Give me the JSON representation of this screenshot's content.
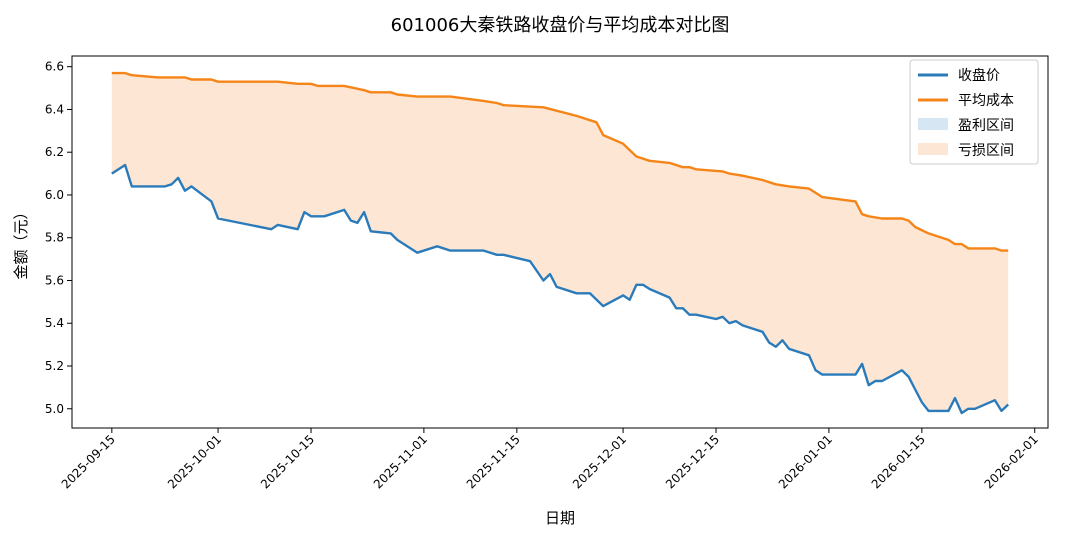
{
  "colors": {
    "close": "#2b7bba",
    "cost": "#f58518",
    "profit_fill": "#d6e6f2",
    "loss_fill": "#fde6d3"
  },
  "chart_data": {
    "type": "line",
    "title": "601006大秦铁路收盘价与平均成本对比图",
    "xlabel": "日期",
    "ylabel": "金额（元）",
    "x_range": [
      "2025-09-09",
      "2026-02-03"
    ],
    "ylim": [
      4.91,
      6.65
    ],
    "y_ticks": [
      "5.0",
      "5.2",
      "5.4",
      "5.6",
      "5.8",
      "6.0",
      "6.2",
      "6.4",
      "6.6"
    ],
    "x_ticks": [
      "2025-09-15",
      "2025-10-01",
      "2025-10-15",
      "2025-11-01",
      "2025-11-15",
      "2025-12-01",
      "2025-12-15",
      "2026-01-01",
      "2026-01-15",
      "2026-02-01"
    ],
    "grid": false,
    "legend_position": "top-right",
    "legend": [
      "收盘价",
      "平均成本",
      "盈利区间",
      "亏损区间"
    ],
    "series": [
      {
        "name": "收盘价",
        "points": [
          [
            "2025-09-15",
            6.1
          ],
          [
            "2025-09-17",
            6.14
          ],
          [
            "2025-09-18",
            6.04
          ],
          [
            "2025-09-19",
            6.04
          ],
          [
            "2025-09-22",
            6.04
          ],
          [
            "2025-09-23",
            6.04
          ],
          [
            "2025-09-24",
            6.05
          ],
          [
            "2025-09-25",
            6.08
          ],
          [
            "2025-09-26",
            6.02
          ],
          [
            "2025-09-27",
            6.04
          ],
          [
            "2025-09-30",
            5.97
          ],
          [
            "2025-10-01",
            5.89
          ],
          [
            "2025-10-09",
            5.84
          ],
          [
            "2025-10-10",
            5.86
          ],
          [
            "2025-10-13",
            5.84
          ],
          [
            "2025-10-14",
            5.92
          ],
          [
            "2025-10-15",
            5.9
          ],
          [
            "2025-10-16",
            5.9
          ],
          [
            "2025-10-17",
            5.9
          ],
          [
            "2025-10-20",
            5.93
          ],
          [
            "2025-10-21",
            5.88
          ],
          [
            "2025-10-22",
            5.87
          ],
          [
            "2025-10-23",
            5.92
          ],
          [
            "2025-10-24",
            5.83
          ],
          [
            "2025-10-27",
            5.82
          ],
          [
            "2025-10-28",
            5.79
          ],
          [
            "2025-10-31",
            5.73
          ],
          [
            "2025-11-03",
            5.76
          ],
          [
            "2025-11-05",
            5.74
          ],
          [
            "2025-11-10",
            5.74
          ],
          [
            "2025-11-12",
            5.72
          ],
          [
            "2025-11-13",
            5.72
          ],
          [
            "2025-11-17",
            5.69
          ],
          [
            "2025-11-19",
            5.6
          ],
          [
            "2025-11-20",
            5.63
          ],
          [
            "2025-11-21",
            5.57
          ],
          [
            "2025-11-24",
            5.54
          ],
          [
            "2025-11-26",
            5.54
          ],
          [
            "2025-11-28",
            5.48
          ],
          [
            "2025-12-01",
            5.53
          ],
          [
            "2025-12-02",
            5.51
          ],
          [
            "2025-12-03",
            5.58
          ],
          [
            "2025-12-04",
            5.58
          ],
          [
            "2025-12-05",
            5.56
          ],
          [
            "2025-12-08",
            5.52
          ],
          [
            "2025-12-09",
            5.47
          ],
          [
            "2025-12-10",
            5.47
          ],
          [
            "2025-12-11",
            5.44
          ],
          [
            "2025-12-12",
            5.44
          ],
          [
            "2025-12-15",
            5.42
          ],
          [
            "2025-12-16",
            5.43
          ],
          [
            "2025-12-17",
            5.4
          ],
          [
            "2025-12-18",
            5.41
          ],
          [
            "2025-12-19",
            5.39
          ],
          [
            "2025-12-22",
            5.36
          ],
          [
            "2025-12-23",
            5.31
          ],
          [
            "2025-12-24",
            5.29
          ],
          [
            "2025-12-25",
            5.32
          ],
          [
            "2025-12-26",
            5.28
          ],
          [
            "2025-12-29",
            5.25
          ],
          [
            "2025-12-30",
            5.18
          ],
          [
            "2025-12-31",
            5.16
          ],
          [
            "2026-01-05",
            5.16
          ],
          [
            "2026-01-06",
            5.21
          ],
          [
            "2026-01-07",
            5.11
          ],
          [
            "2026-01-08",
            5.13
          ],
          [
            "2026-01-09",
            5.13
          ],
          [
            "2026-01-12",
            5.18
          ],
          [
            "2026-01-13",
            5.15
          ],
          [
            "2026-01-14",
            5.09
          ],
          [
            "2026-01-15",
            5.03
          ],
          [
            "2026-01-16",
            4.99
          ],
          [
            "2026-01-19",
            4.99
          ],
          [
            "2026-01-20",
            5.05
          ],
          [
            "2026-01-21",
            4.98
          ],
          [
            "2026-01-22",
            5.0
          ],
          [
            "2026-01-23",
            5.0
          ],
          [
            "2026-01-26",
            5.04
          ],
          [
            "2026-01-27",
            4.99
          ],
          [
            "2026-01-28",
            5.02
          ]
        ]
      },
      {
        "name": "平均成本",
        "points": [
          [
            "2025-09-15",
            6.57
          ],
          [
            "2025-09-17",
            6.57
          ],
          [
            "2025-09-18",
            6.56
          ],
          [
            "2025-09-22",
            6.55
          ],
          [
            "2025-09-26",
            6.55
          ],
          [
            "2025-09-27",
            6.54
          ],
          [
            "2025-09-30",
            6.54
          ],
          [
            "2025-10-01",
            6.53
          ],
          [
            "2025-10-10",
            6.53
          ],
          [
            "2025-10-13",
            6.52
          ],
          [
            "2025-10-15",
            6.52
          ],
          [
            "2025-10-16",
            6.51
          ],
          [
            "2025-10-20",
            6.51
          ],
          [
            "2025-10-23",
            6.49
          ],
          [
            "2025-10-24",
            6.48
          ],
          [
            "2025-10-27",
            6.48
          ],
          [
            "2025-10-28",
            6.47
          ],
          [
            "2025-10-31",
            6.46
          ],
          [
            "2025-11-05",
            6.46
          ],
          [
            "2025-11-10",
            6.44
          ],
          [
            "2025-11-12",
            6.43
          ],
          [
            "2025-11-13",
            6.42
          ],
          [
            "2025-11-19",
            6.41
          ],
          [
            "2025-11-24",
            6.37
          ],
          [
            "2025-11-27",
            6.34
          ],
          [
            "2025-11-28",
            6.28
          ],
          [
            "2025-12-01",
            6.24
          ],
          [
            "2025-12-03",
            6.18
          ],
          [
            "2025-12-05",
            6.16
          ],
          [
            "2025-12-08",
            6.15
          ],
          [
            "2025-12-10",
            6.13
          ],
          [
            "2025-12-11",
            6.13
          ],
          [
            "2025-12-12",
            6.12
          ],
          [
            "2025-12-16",
            6.11
          ],
          [
            "2025-12-17",
            6.1
          ],
          [
            "2025-12-19",
            6.09
          ],
          [
            "2025-12-22",
            6.07
          ],
          [
            "2025-12-24",
            6.05
          ],
          [
            "2025-12-26",
            6.04
          ],
          [
            "2025-12-29",
            6.03
          ],
          [
            "2025-12-30",
            6.01
          ],
          [
            "2025-12-31",
            5.99
          ],
          [
            "2026-01-05",
            5.97
          ],
          [
            "2026-01-06",
            5.91
          ],
          [
            "2026-01-07",
            5.9
          ],
          [
            "2026-01-09",
            5.89
          ],
          [
            "2026-01-12",
            5.89
          ],
          [
            "2026-01-13",
            5.88
          ],
          [
            "2026-01-14",
            5.85
          ],
          [
            "2026-01-16",
            5.82
          ],
          [
            "2026-01-19",
            5.79
          ],
          [
            "2026-01-20",
            5.77
          ],
          [
            "2026-01-21",
            5.77
          ],
          [
            "2026-01-22",
            5.75
          ],
          [
            "2026-01-26",
            5.75
          ],
          [
            "2026-01-27",
            5.74
          ],
          [
            "2026-01-28",
            5.74
          ]
        ]
      }
    ]
  }
}
